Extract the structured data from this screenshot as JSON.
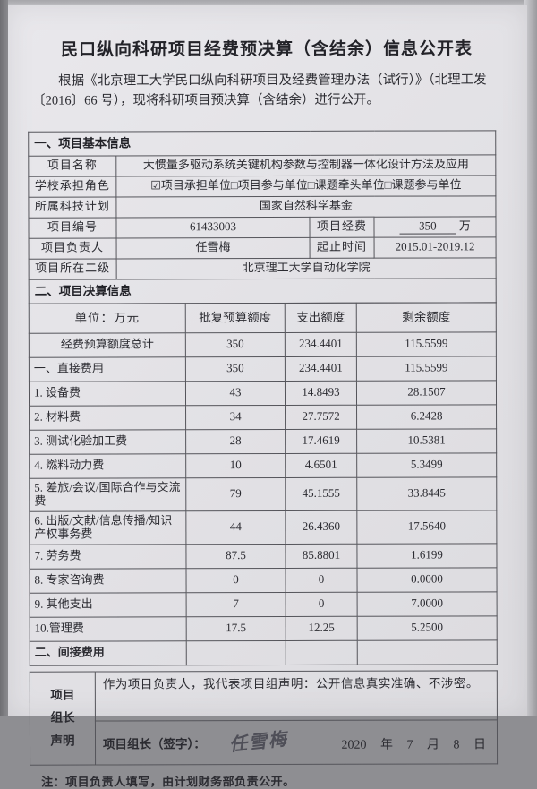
{
  "title": "民口纵向科研项目经费预决算（含结余）信息公开表",
  "intro": "根据《北京理工大学民口纵向科研项目及经费管理办法（试行）》（北理工发〔2016〕66 号），现将科研项目预决算（含结余）进行公开。",
  "section1": {
    "header": "一、项目基本信息",
    "project_name_label": "项目名称",
    "project_name": "大惯量多驱动系统关键机构参数与控制器一体化设计方法及应用",
    "role_label": "学校承担角色",
    "role_options": [
      {
        "checked": true,
        "glyph": "☑",
        "label": "项目承担单位"
      },
      {
        "checked": false,
        "glyph": "□",
        "label": "项目参与单位"
      },
      {
        "checked": false,
        "glyph": "□",
        "label": "课题牵头单位"
      },
      {
        "checked": false,
        "glyph": "□",
        "label": "课题参与单位"
      }
    ],
    "plan_label": "所属科技计划",
    "plan_value": "国家自然科学基金",
    "number_label": "项目编号",
    "number_value": "61433003",
    "funding_label": "项目经费",
    "funding_amount": "350",
    "funding_unit": "万",
    "leader_label": "项目负责人",
    "leader_value": "任雪梅",
    "period_label": "起止时间",
    "period_value": "2015.01-2019.12",
    "dept_label": "项目所在二级",
    "dept_value": "北京理工大学自动化学院"
  },
  "section2_header": "二、项目决算信息",
  "budget": {
    "columns": [
      "单位：万元",
      "批复预算额度",
      "支出额度",
      "剩余额度"
    ],
    "rows": [
      {
        "label": "经费预算额度总计",
        "align": "center",
        "values": [
          "350",
          "234.4401",
          "115.5599"
        ]
      },
      {
        "label": "一、直接费用",
        "align": "left",
        "values": [
          "350",
          "234.4401",
          "115.5599"
        ]
      },
      {
        "label": "1. 设备费",
        "align": "left",
        "values": [
          "43",
          "14.8493",
          "28.1507"
        ]
      },
      {
        "label": "2. 材料费",
        "align": "left",
        "values": [
          "34",
          "27.7572",
          "6.2428"
        ]
      },
      {
        "label": "3. 测试化验加工费",
        "align": "left",
        "values": [
          "28",
          "17.4619",
          "10.5381"
        ]
      },
      {
        "label": "4. 燃料动力费",
        "align": "left",
        "values": [
          "10",
          "4.6501",
          "5.3499"
        ]
      },
      {
        "label": "5. 差旅/会议/国际合作与交流费",
        "align": "left",
        "values": [
          "79",
          "45.1555",
          "33.8445"
        ]
      },
      {
        "label": "6. 出版/文献/信息传播/知识产权事务费",
        "align": "left",
        "values": [
          "44",
          "26.4360",
          "17.5640"
        ]
      },
      {
        "label": "7. 劳务费",
        "align": "left",
        "values": [
          "87.5",
          "85.8801",
          "1.6199"
        ]
      },
      {
        "label": "8. 专家咨询费",
        "align": "left",
        "values": [
          "0",
          "0",
          "0.0000"
        ]
      },
      {
        "label": "9. 其他支出",
        "align": "left",
        "values": [
          "7",
          "0",
          "7.0000"
        ]
      },
      {
        "label": "10.管理费",
        "align": "left",
        "values": [
          "17.5",
          "12.25",
          "5.2500"
        ]
      },
      {
        "label": "二、间接费用",
        "align": "left",
        "bold": true,
        "values": [
          "",
          "",
          ""
        ]
      }
    ]
  },
  "declaration": {
    "label_line1": "项目",
    "label_line2": "组长",
    "label_line3": "声明",
    "statement": "作为项目负责人，我代表项目组声明：公开信息真实准确、不涉密。",
    "sign_label": "项目组长（签字）：",
    "signature": "任雪梅",
    "date": "2020 年 7 月 8 日"
  },
  "footnote": "注：项目负责人填写，由计划财务部负责公开。"
}
